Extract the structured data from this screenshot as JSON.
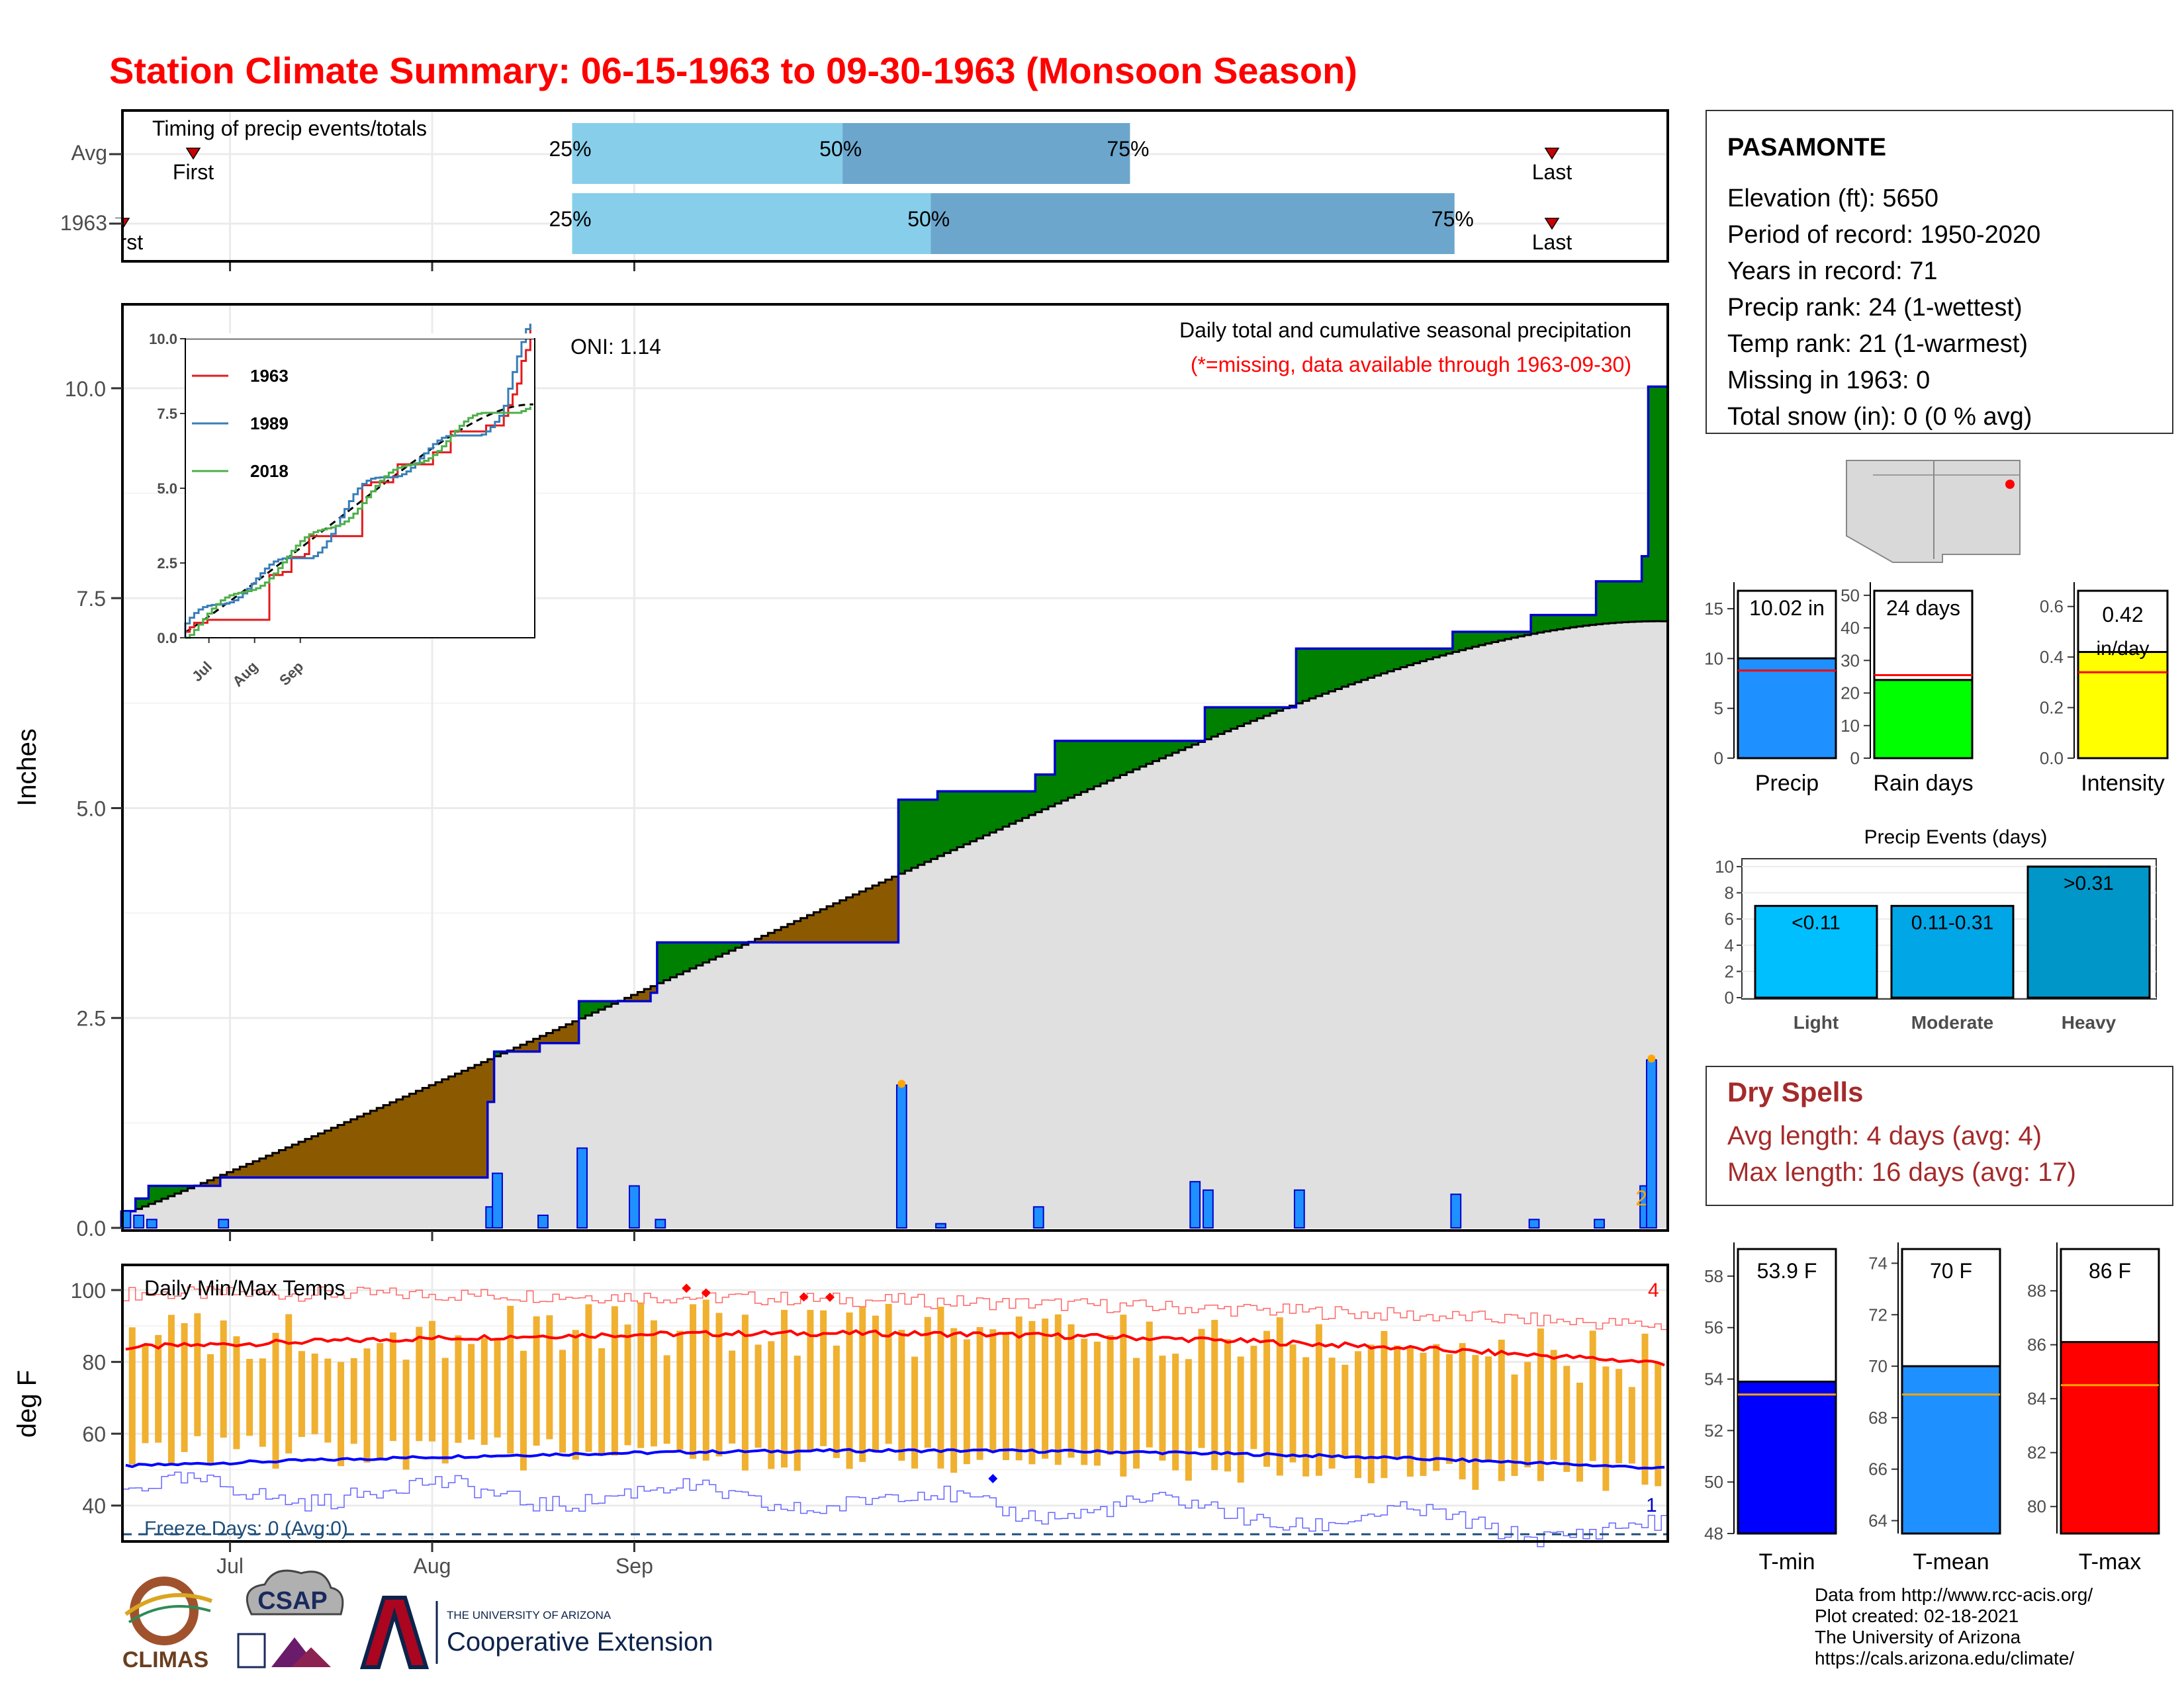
{
  "title": "Station Climate Summary: 06-15-1963 to 09-30-1963 (Monsoon Season)",
  "colors": {
    "title": "#ff0000",
    "above_avg_fill": "#8b5a00",
    "below_avg_fill": "#008000",
    "daily_bar": "#1e90ff",
    "cum_line": "#0000cc",
    "temp_bar": "#f0b030",
    "tmax_line": "#ff0000",
    "tmin_line": "#0000ff",
    "freeze_line": "#1f4e79",
    "dry_spells": "#a52a2a"
  },
  "timing_panel": {
    "label": "Timing of precip events/totals",
    "rows": [
      {
        "label": "Avg",
        "q25_day": 0.291,
        "q50_day": 0.466,
        "q75_day": 0.652,
        "first_label": "First",
        "last_label": "Last"
      },
      {
        "label": "1963",
        "q25_day": 0.291,
        "q50_day": 0.523,
        "q75_day": 0.862,
        "first_label": "First",
        "last_label": "Last"
      }
    ],
    "q_labels": [
      "25%",
      "50%",
      "75%"
    ]
  },
  "precip_panel": {
    "ylabel": "Inches",
    "yticks": [
      "0.0",
      "2.5",
      "5.0",
      "7.5",
      "10.0"
    ],
    "ylim": [
      0,
      11
    ],
    "header": "Daily total and cumulative seasonal precipitation",
    "missing_note": "(*=missing, data available through 1963-09-30)",
    "oni": "ONI: 1.14",
    "count_label": "2",
    "xticks": [
      "Jul",
      "Aug",
      "Sep"
    ],
    "inset": {
      "yticks": [
        "0.0",
        "2.5",
        "5.0",
        "7.5",
        "10.0"
      ],
      "xticks": [
        "Jul",
        "Aug",
        "Sep"
      ],
      "legend": [
        {
          "name": "1963",
          "color": "#e41a1c"
        },
        {
          "name": "1989",
          "color": "#377eb8"
        },
        {
          "name": "2018",
          "color": "#4daf4a"
        }
      ]
    }
  },
  "temp_panel": {
    "ylabel": "deg F",
    "yticks": [
      "40",
      "60",
      "80",
      "100"
    ],
    "label": "Daily Min/Max Temps",
    "freeze_label": "Freeze Days: 0 (Avg:0)",
    "count_hot": "4",
    "count_cold": "1",
    "xticks": [
      "Jul",
      "Aug",
      "Sep"
    ]
  },
  "station_info": {
    "name": "PASAMONTE",
    "lines": [
      "Elevation (ft): 5650",
      "Period of record: 1950-2020",
      "Years in record: 71",
      "Precip rank: 24 (1-wettest)",
      "Temp rank: 21 (1-warmest)",
      "Missing in 1963: 0",
      "Total snow (in): 0 (0 % avg)"
    ]
  },
  "summary_bars": [
    {
      "label": "Precip",
      "value_label": "10.02 in",
      "value": 10.02,
      "avg": 8.8,
      "ymax": 17,
      "yticks": [
        0,
        5,
        10,
        15
      ],
      "color": "#1e90ff"
    },
    {
      "label": "Rain days",
      "value_label": "24 days",
      "value": 24,
      "avg": 25.5,
      "ymax": 52,
      "yticks": [
        0,
        10,
        20,
        30,
        40,
        50
      ],
      "color": "#00ff00"
    },
    {
      "label": "Intensity",
      "value_label": "0.42 in/day",
      "value_label_1": "0.42",
      "value_label_2": "in/day",
      "value": 0.42,
      "avg": 0.34,
      "ymax": 0.67,
      "yticks": [
        "0.0",
        "0.2",
        "0.4",
        "0.6"
      ],
      "color": "#ffff00"
    }
  ],
  "precip_events": {
    "title": "Precip Events (days)",
    "yticks": [
      0,
      2,
      4,
      6,
      8,
      10
    ],
    "categories": [
      "Light",
      "Moderate",
      "Heavy"
    ],
    "bins": [
      "<0.11",
      "0.11-0.31",
      ">0.31"
    ],
    "values": [
      7,
      7,
      10
    ],
    "colors": [
      "#00bfff",
      "#00a6e6",
      "#0096c8"
    ]
  },
  "dry_spells": {
    "title": "Dry Spells",
    "avg_line": "Avg length: 4 days (avg: 4)",
    "max_line": "Max length: 16 days (avg: 17)"
  },
  "temp_bars": [
    {
      "label": "T-min",
      "value_label": "53.9 F",
      "value": 53.9,
      "avg": 53.4,
      "ymin": 48,
      "ymax": 59,
      "yticks": [
        48,
        50,
        52,
        54,
        56,
        58
      ],
      "color": "#0000ff"
    },
    {
      "label": "T-mean",
      "value_label": "70 F",
      "value": 70,
      "avg": 68.9,
      "ymin": 63.5,
      "ymax": 74.5,
      "yticks": [
        64,
        66,
        68,
        70,
        72,
        74
      ],
      "color": "#1e90ff"
    },
    {
      "label": "T-max",
      "value_label": "86 F",
      "value": 86.1,
      "avg": 84.5,
      "ymin": 79,
      "ymax": 89.5,
      "yticks": [
        80,
        82,
        84,
        86,
        88
      ],
      "color": "#ff0000"
    }
  ],
  "credits": [
    "Data from http://www.rcc-acis.org/",
    "Plot created: 02-18-2021",
    "The University of Arizona",
    "https://cals.arizona.edu/climate/"
  ],
  "logos": {
    "climas": "CLIMAS",
    "csap": "CSAP",
    "ua_small": "THE UNIVERSITY OF ARIZONA",
    "ua_big": "Cooperative Extension"
  },
  "chart_data": {
    "type": "area",
    "title": "Daily total and cumulative seasonal precipitation",
    "ylabel": "Inches",
    "ylim": [
      0,
      11
    ],
    "x_start": "1963-06-15",
    "x_end": "1963-09-30",
    "series": [
      {
        "name": "1963",
        "points": [
          [
            0,
            0.2
          ],
          [
            1,
            0.2
          ],
          [
            2,
            0.35
          ],
          [
            3,
            0.35
          ],
          [
            4,
            0.5
          ],
          [
            15,
            0.6
          ],
          [
            56,
            1.5
          ],
          [
            57,
            2.1
          ],
          [
            64,
            2.2
          ],
          [
            70,
            2.7
          ],
          [
            78,
            2.7
          ],
          [
            81,
            2.8
          ],
          [
            82,
            3.4
          ],
          [
            118,
            3.4
          ],
          [
            119,
            5.1
          ],
          [
            125,
            5.2
          ],
          [
            140,
            5.4
          ],
          [
            143,
            5.8
          ],
          [
            164,
            5.8
          ],
          [
            166,
            6.2
          ],
          [
            179,
            6.2
          ],
          [
            180,
            6.9
          ],
          [
            203,
            6.9
          ],
          [
            204,
            7.1
          ],
          [
            215,
            7.1
          ],
          [
            216,
            7.3
          ],
          [
            226,
            7.7
          ],
          [
            233,
            8.0
          ],
          [
            234,
            10.02
          ]
        ]
      }
    ],
    "daily_precip": [
      {
        "day": 0,
        "value": 0.2
      },
      {
        "day": 2,
        "value": 0.15
      },
      {
        "day": 4,
        "value": 0.1
      },
      {
        "day": 15,
        "value": 0.1
      },
      {
        "day": 56,
        "value": 0.25
      },
      {
        "day": 57,
        "value": 0.65
      },
      {
        "day": 64,
        "value": 0.15
      },
      {
        "day": 70,
        "value": 0.95
      },
      {
        "day": 78,
        "value": 0.5
      },
      {
        "day": 82,
        "value": 0.1
      },
      {
        "day": 119,
        "value": 1.7
      },
      {
        "day": 125,
        "value": 0.05
      },
      {
        "day": 140,
        "value": 0.25
      },
      {
        "day": 164,
        "value": 0.55
      },
      {
        "day": 166,
        "value": 0.45
      },
      {
        "day": 180,
        "value": 0.45
      },
      {
        "day": 204,
        "value": 0.4
      },
      {
        "day": 216,
        "value": 0.1
      },
      {
        "day": 226,
        "value": 0.1
      },
      {
        "day": 233,
        "value": 0.5
      },
      {
        "day": 234,
        "value": 2.0
      }
    ]
  }
}
